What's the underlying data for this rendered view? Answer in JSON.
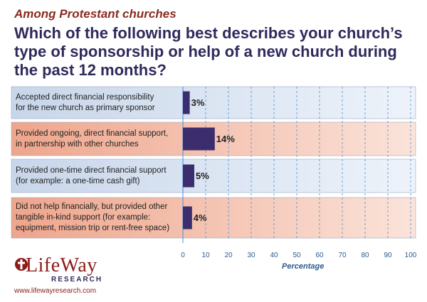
{
  "header": {
    "subtitle": "Among Protestant churches",
    "title": "Which of the following best describes your church’s type of sponsorship or help of a new church during the past 12 months?"
  },
  "branding": {
    "logo_text": "LifeWay",
    "logo_subtext": "RESEARCH",
    "url": "www.lifewayresearch.com"
  },
  "chart_data": {
    "type": "bar",
    "orientation": "horizontal",
    "categories": [
      "Accepted direct financial responsibility for the new church as primary sponsor",
      "Provided ongoing, direct financial support, in partnership with other churches",
      "Provided one-time direct financial support (for example: a one-time cash gift)",
      "Did not help financially, but provided other tangible in-kind support (for example: equipment, mission trip or rent-free space)"
    ],
    "category_lines": [
      [
        "Accepted direct financial responsibility",
        "for the new church as primary sponsor"
      ],
      [
        "Provided ongoing, direct financial support,",
        "in partnership with other churches"
      ],
      [
        "Provided one-time direct financial support",
        "(for example: a one-time cash gift)"
      ],
      [
        "Did not help financially, but provided other",
        "tangible in-kind support (for example:",
        "equipment, mission trip or rent-free space)"
      ]
    ],
    "values": [
      3,
      14,
      5,
      4
    ],
    "value_labels": [
      "3%",
      "14%",
      "5%",
      "4%"
    ],
    "xlabel": "Percentage",
    "xlim": [
      0,
      100
    ],
    "xticks": [
      0,
      10,
      20,
      30,
      40,
      50,
      60,
      70,
      80,
      90,
      100
    ],
    "grid": true,
    "colors": {
      "bar": "#3b2d6e",
      "row_blue": "#d6e2f1",
      "row_salmon": "#f0b9a6",
      "grid": "#4a90d9",
      "tick_label": "#2e5a8e"
    }
  }
}
